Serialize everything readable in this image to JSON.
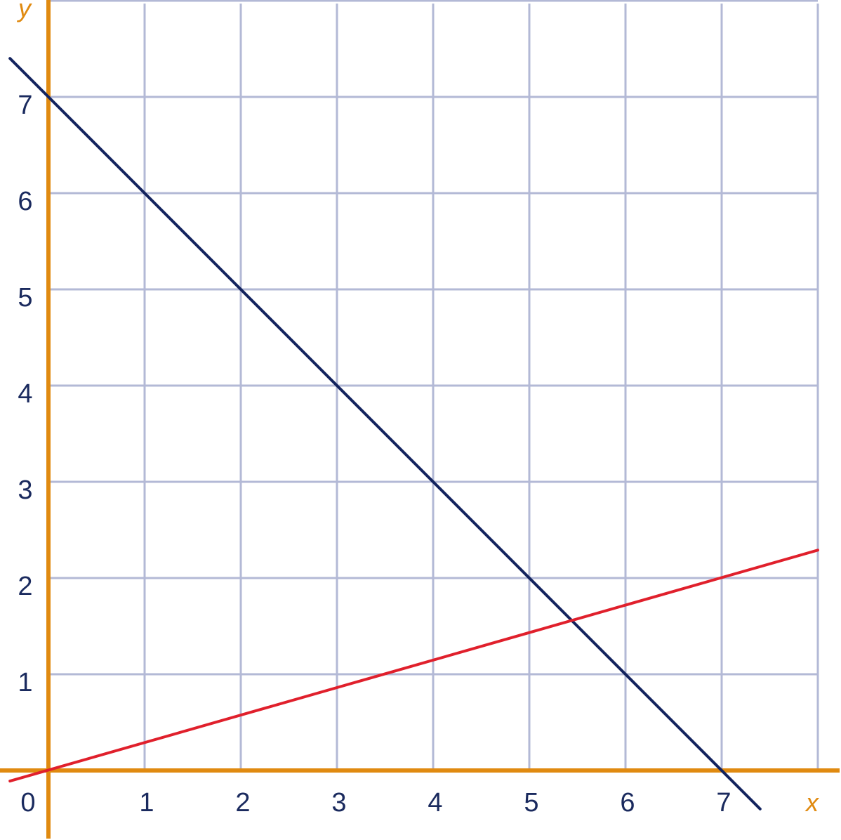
{
  "chart_data": {
    "type": "line",
    "xlabel": "x",
    "ylabel": "y",
    "xlim": [
      -0.45,
      8
    ],
    "ylim": [
      -0.7,
      8
    ],
    "x_ticks": [
      0,
      1,
      2,
      3,
      4,
      5,
      6,
      7
    ],
    "y_ticks": [
      1,
      2,
      3,
      4,
      5,
      6,
      7
    ],
    "origin_label": "0",
    "grid": true,
    "colors": {
      "grid": "#b3b9d6",
      "axes": "#e08a10",
      "tick_text": "#1a2a5e"
    },
    "series": [
      {
        "x": [
          -0.4,
          7.4
        ],
        "y": [
          7.4,
          -0.4
        ],
        "color": "#13235e"
      },
      {
        "x": [
          -0.4,
          8.0
        ],
        "y": [
          -0.11,
          2.29
        ],
        "color": "#e0202c"
      }
    ]
  }
}
